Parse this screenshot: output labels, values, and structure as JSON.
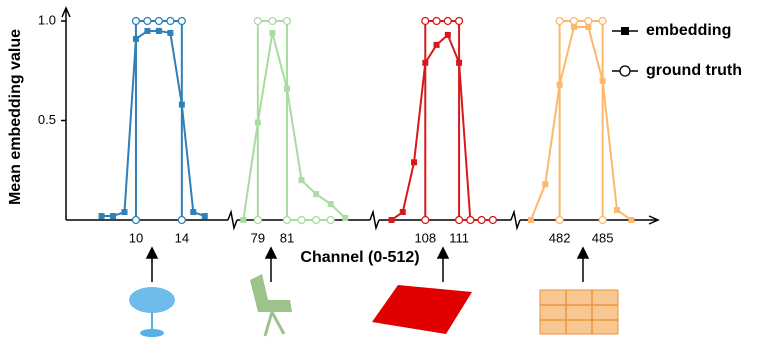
{
  "chart_data": {
    "type": "line",
    "ylabel": "Mean embedding value",
    "xlabel": "Channel (0-512)",
    "ylim": [
      0,
      1.0
    ],
    "yticks": [
      0.5,
      {
        "value": 1,
        "label": "1.0"
      }
    ],
    "legend": "upper right",
    "legend_color": "#000000",
    "series": [
      {
        "name": "embedding",
        "filled": true
      },
      {
        "name": "ground truth",
        "filled": false
      }
    ],
    "panels": [
      {
        "color": "#2f7fb8",
        "xlim": [
          3.9,
          18.2
        ],
        "xticks": [
          10,
          14
        ],
        "series": [
          {
            "x": [
              7,
              8,
              9,
              10,
              11,
              12,
              13,
              14,
              15,
              16
            ],
            "values": [
              0.02,
              0.02,
              0.04,
              0.91,
              0.95,
              0.95,
              0.94,
              0.58,
              0.04,
              0.02
            ]
          },
          {
            "x": [
              10,
              10,
              11,
              12,
              13,
              14,
              14
            ],
            "values": [
              0,
              1,
              1,
              1,
              1,
              1,
              0
            ]
          }
        ]
      },
      {
        "color": "#a8dca0",
        "xlim": [
          77.5,
          86.7
        ],
        "xticks": [
          79,
          81
        ],
        "series": [
          {
            "x": [
              78,
              79,
              80,
              81,
              82,
              83,
              84,
              85
            ],
            "values": [
              0.0,
              0.49,
              0.94,
              0.66,
              0.2,
              0.13,
              0.08,
              0.01
            ]
          },
          {
            "x": [
              79,
              79,
              80,
              81,
              81,
              82,
              83,
              84
            ],
            "values": [
              0,
              1,
              1,
              1,
              0,
              0,
              0,
              0
            ]
          }
        ]
      },
      {
        "color": "#d7191c",
        "xlim": [
          103.8,
          115.7
        ],
        "xticks": [
          108,
          111
        ],
        "series": [
          {
            "x": [
              105,
              106,
              107,
              108,
              109,
              110,
              111,
              112
            ],
            "values": [
              0.0,
              0.04,
              0.29,
              0.79,
              0.88,
              0.93,
              0.79,
              0.0
            ]
          },
          {
            "x": [
              108,
              108,
              109,
              110,
              111,
              111,
              112,
              113,
              114
            ],
            "values": [
              0,
              1,
              1,
              1,
              1,
              0,
              0,
              0,
              0
            ]
          }
        ]
      },
      {
        "color": "#fdb86b",
        "xlim": [
          479.1,
          488.3
        ],
        "xticks": [
          482,
          485
        ],
        "series": [
          {
            "x": [
              480,
              481,
              482,
              483,
              484,
              485,
              486,
              487
            ],
            "values": [
              0.0,
              0.18,
              0.68,
              0.97,
              0.97,
              0.7,
              0.05,
              0.0
            ]
          },
          {
            "x": [
              482,
              482,
              483,
              484,
              485,
              485
            ],
            "values": [
              0,
              1,
              1,
              1,
              1,
              0
            ]
          }
        ]
      }
    ]
  }
}
